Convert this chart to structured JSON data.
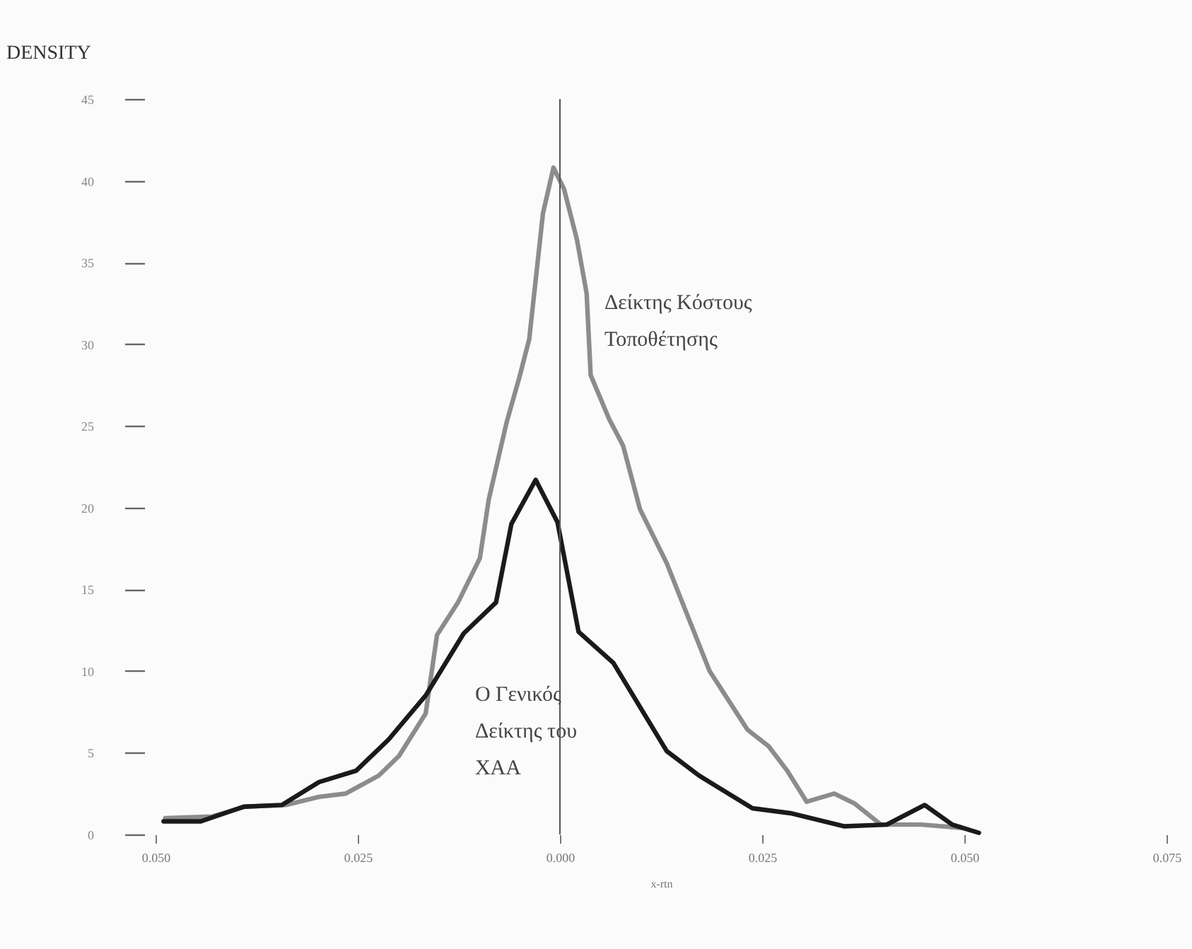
{
  "chart_data": {
    "type": "line",
    "ylabel": "DENSITY",
    "xlabel": "x-rtn",
    "xlim": [
      -0.05,
      0.075
    ],
    "ylim": [
      0,
      45
    ],
    "xticks": [
      {
        "value": -0.05,
        "label": "0.050"
      },
      {
        "value": -0.025,
        "label": "0.025"
      },
      {
        "value": 0,
        "label": "0.000"
      },
      {
        "value": 0.025,
        "label": "0.025"
      },
      {
        "value": 0.05,
        "label": "0.050"
      },
      {
        "value": 0.075,
        "label": "0.075"
      }
    ],
    "yticks": [
      0,
      5,
      10,
      15,
      20,
      25,
      30,
      35,
      40,
      45
    ],
    "ref_lines": [
      {
        "axis": "x",
        "value": 0,
        "color": "#555555"
      }
    ],
    "series": [
      {
        "name": "Δείκτης Κόστους Τοποθέτησης",
        "color": "#8c8c8c",
        "x": [
          -0.0488,
          -0.043,
          -0.0389,
          -0.0339,
          -0.0298,
          -0.0265,
          -0.0224,
          -0.0199,
          -0.0166,
          -0.0152,
          -0.0126,
          -0.0099,
          -0.0088,
          -0.0066,
          -0.005,
          -0.0038,
          -0.0021,
          -0.0008,
          0.0005,
          0.0021,
          0.0033,
          0.0038,
          0.0061,
          0.0078,
          0.0099,
          0.0132,
          0.0185,
          0.0232,
          0.0258,
          0.0281,
          0.0305,
          0.0339,
          0.0364,
          0.0397,
          0.0447,
          0.0497
        ],
        "values": [
          1.0,
          1.1,
          1.7,
          1.8,
          2.3,
          2.5,
          3.6,
          4.8,
          7.4,
          12.2,
          14.2,
          16.9,
          20.5,
          25.2,
          28.0,
          30.3,
          38.0,
          40.8,
          39.5,
          36.4,
          33.1,
          28.1,
          25.4,
          23.8,
          19.9,
          16.6,
          10.0,
          6.4,
          5.4,
          3.9,
          2.0,
          2.5,
          1.9,
          0.6,
          0.6,
          0.4
        ]
      },
      {
        "name": "Ο Γενικός Δείκτης του ΧΑΑ",
        "color": "#1a1a1a",
        "x": [
          -0.049,
          -0.0444,
          -0.0391,
          -0.0344,
          -0.0298,
          -0.0252,
          -0.0212,
          -0.0166,
          -0.0119,
          -0.0079,
          -0.006,
          -0.003,
          -0.0003,
          0.0023,
          0.0066,
          0.0132,
          0.0172,
          0.0238,
          0.0285,
          0.0351,
          0.0404,
          0.0451,
          0.0485,
          0.0518
        ],
        "values": [
          0.8,
          0.8,
          1.7,
          1.8,
          3.2,
          3.9,
          5.8,
          8.5,
          12.3,
          14.2,
          19.0,
          21.7,
          19.1,
          12.4,
          10.5,
          5.1,
          3.6,
          1.6,
          1.3,
          0.5,
          0.6,
          1.8,
          0.6,
          0.1
        ]
      }
    ]
  }
}
